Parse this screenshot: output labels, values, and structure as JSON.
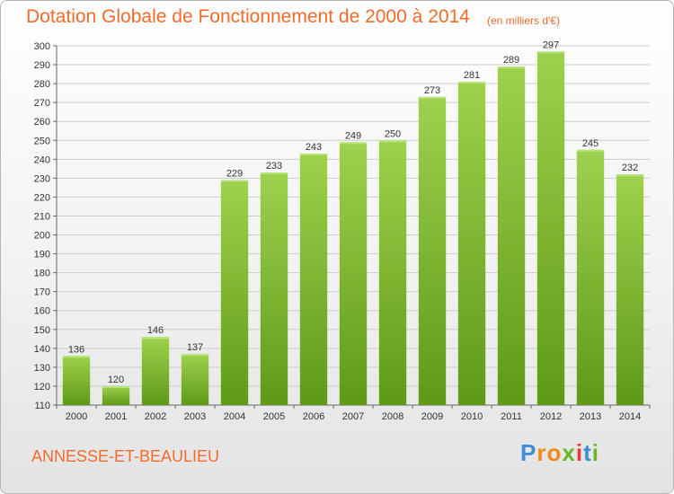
{
  "title": "Dotation Globale de Fonctionnement de 2000 à 2014",
  "subtitle": "(en milliers d'€)",
  "commune": "ANNESSE-ET-BEAULIEU",
  "logo": {
    "text": "Proxiti",
    "colors": [
      "#3a8fd6",
      "#f28a1a",
      "#f28a1a",
      "#6bb52b",
      "#e53a3a",
      "#3a8fd6",
      "#6bb52b"
    ]
  },
  "colors": {
    "title": "#f26b2b",
    "bar_top": "#9ed14e",
    "bar_bottom": "#5e9a16",
    "grid": "#cccccc"
  },
  "chart_data": {
    "type": "bar",
    "title": "Dotation Globale de Fonctionnement de 2000 à 2014",
    "subtitle": "(en milliers d'€)",
    "xlabel": "",
    "ylabel": "",
    "categories": [
      "2000",
      "2001",
      "2002",
      "2003",
      "2004",
      "2005",
      "2006",
      "2007",
      "2008",
      "2009",
      "2010",
      "2011",
      "2012",
      "2013",
      "2014"
    ],
    "values": [
      136,
      120,
      146,
      137,
      229,
      233,
      243,
      249,
      250,
      273,
      281,
      289,
      297,
      245,
      232
    ],
    "ylim": [
      110,
      300
    ],
    "yticks": [
      110,
      120,
      130,
      140,
      150,
      160,
      170,
      180,
      190,
      200,
      210,
      220,
      230,
      240,
      250,
      260,
      270,
      280,
      290,
      300
    ],
    "grid": true,
    "data_labels": true,
    "legend": "none"
  }
}
